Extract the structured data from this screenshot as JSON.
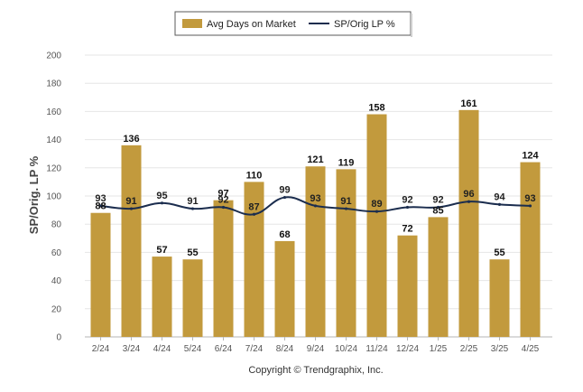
{
  "colors": {
    "bar": "#C29A3D",
    "line": "#1B2D4E",
    "grid": "#e6e6e6",
    "axis": "#b5b5b5"
  },
  "chart_data": {
    "type": "bar",
    "categories": [
      "2/24",
      "3/24",
      "4/24",
      "5/24",
      "6/24",
      "7/24",
      "8/24",
      "9/24",
      "10/24",
      "11/24",
      "12/24",
      "1/25",
      "2/25",
      "3/25",
      "4/25"
    ],
    "series": [
      {
        "name": "Avg Days on Market",
        "type": "bar",
        "values": [
          88,
          136,
          57,
          55,
          97,
          110,
          68,
          121,
          119,
          158,
          72,
          85,
          161,
          55,
          124
        ]
      },
      {
        "name": "SP/Orig LP %",
        "type": "line",
        "values": [
          93,
          91,
          95,
          91,
          92,
          87,
          99,
          93,
          91,
          89,
          92,
          92,
          96,
          94,
          93
        ]
      }
    ],
    "bar_labels": [
      "88",
      "136",
      "57",
      "55",
      "97",
      "110",
      "68",
      "121",
      "119",
      "158",
      "72",
      "85",
      "161",
      "55",
      "124"
    ],
    "line_labels": [
      "93",
      "91",
      "95",
      "91",
      "92",
      "87",
      "99",
      "93",
      "91",
      "89",
      "92",
      "92",
      "96",
      "94",
      "93"
    ],
    "ylabel": "SP/Orig. LP %",
    "ylim": [
      0,
      200
    ],
    "yticks": [
      0,
      20,
      40,
      60,
      80,
      100,
      120,
      140,
      160,
      180,
      200
    ],
    "grid": true,
    "legend_position": "top-center"
  },
  "footer": "Copyright © Trendgraphix, Inc."
}
